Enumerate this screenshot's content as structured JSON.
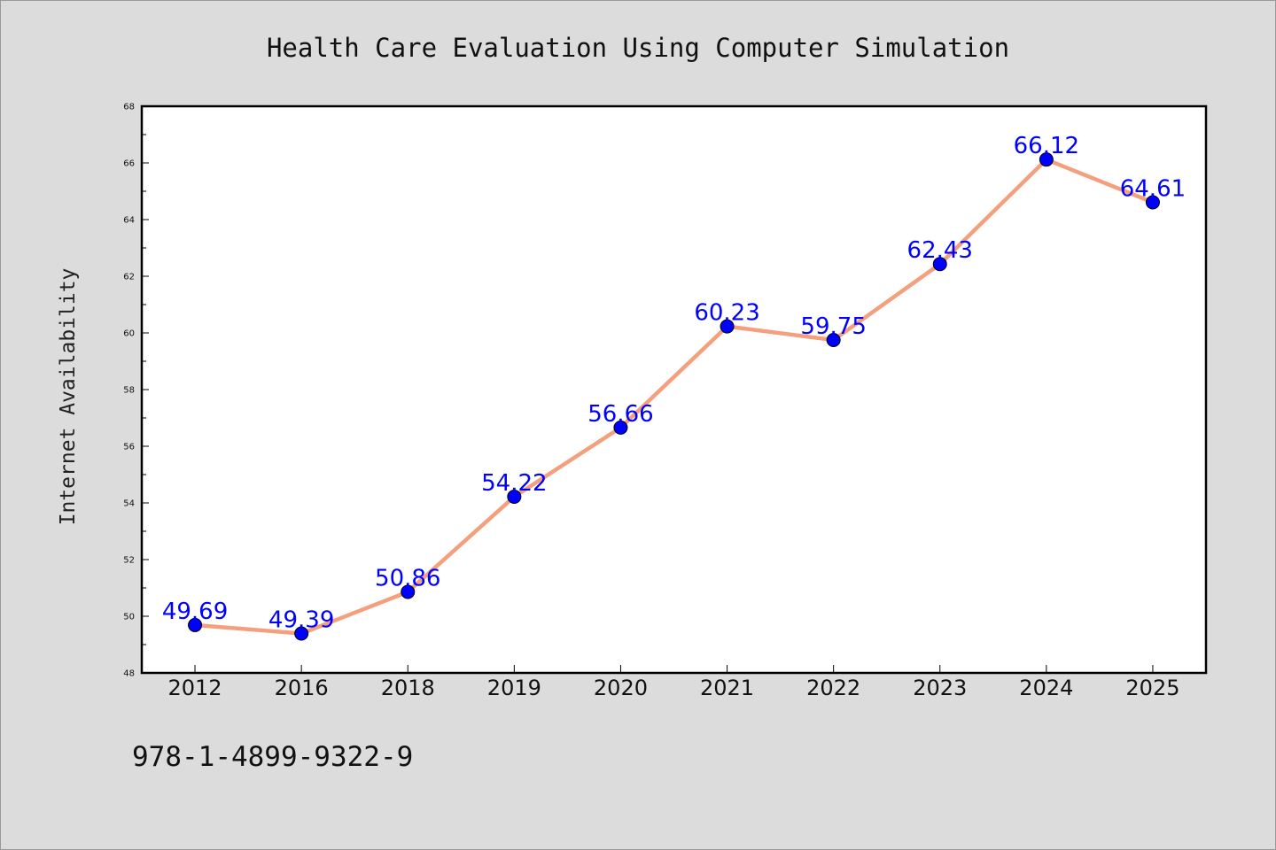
{
  "chart_data": {
    "type": "line",
    "title": "Health Care Evaluation Using Computer Simulation",
    "xlabel": "",
    "ylabel": "Internet Availability",
    "categories": [
      "2012",
      "2016",
      "2018",
      "2019",
      "2020",
      "2021",
      "2022",
      "2023",
      "2024",
      "2025"
    ],
    "series": [
      {
        "values": [
          49.69,
          49.39,
          50.86,
          54.22,
          56.66,
          60.23,
          59.75,
          62.43,
          66.12,
          64.61
        ],
        "data_labels": [
          "49.69",
          "49.39",
          "50.86",
          "54.22",
          "56.66",
          "60.23",
          "59.75",
          "62.43",
          "66.12",
          "64.61"
        ],
        "line_color": "#f4a07e",
        "marker_color": "#0000ff"
      }
    ],
    "ylim": [
      48,
      68
    ],
    "yticks": [
      48,
      50,
      52,
      54,
      56,
      58,
      60,
      62,
      64,
      66,
      68
    ],
    "grid": false,
    "legend": "none"
  },
  "footnote": "978-1-4899-9322-9"
}
